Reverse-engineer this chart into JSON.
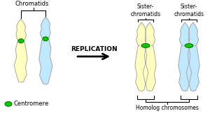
{
  "bg_color": "#ffffff",
  "arrow_text": "REPLICATION",
  "left_label": "Chromatids",
  "right_label1": "Sister-\nchromatids",
  "right_label2": "Sister-\nchromatids",
  "bottom_label": "Homolog chromosomes",
  "centromere_label": "Centromere",
  "centromere_color": "#00cc00",
  "centromere_dark": "#006600",
  "chromatid_yellow": "#ffffc0",
  "chromatid_blue": "#c0e8ff",
  "outline_color": "#aaaaaa",
  "text_color": "#000000"
}
